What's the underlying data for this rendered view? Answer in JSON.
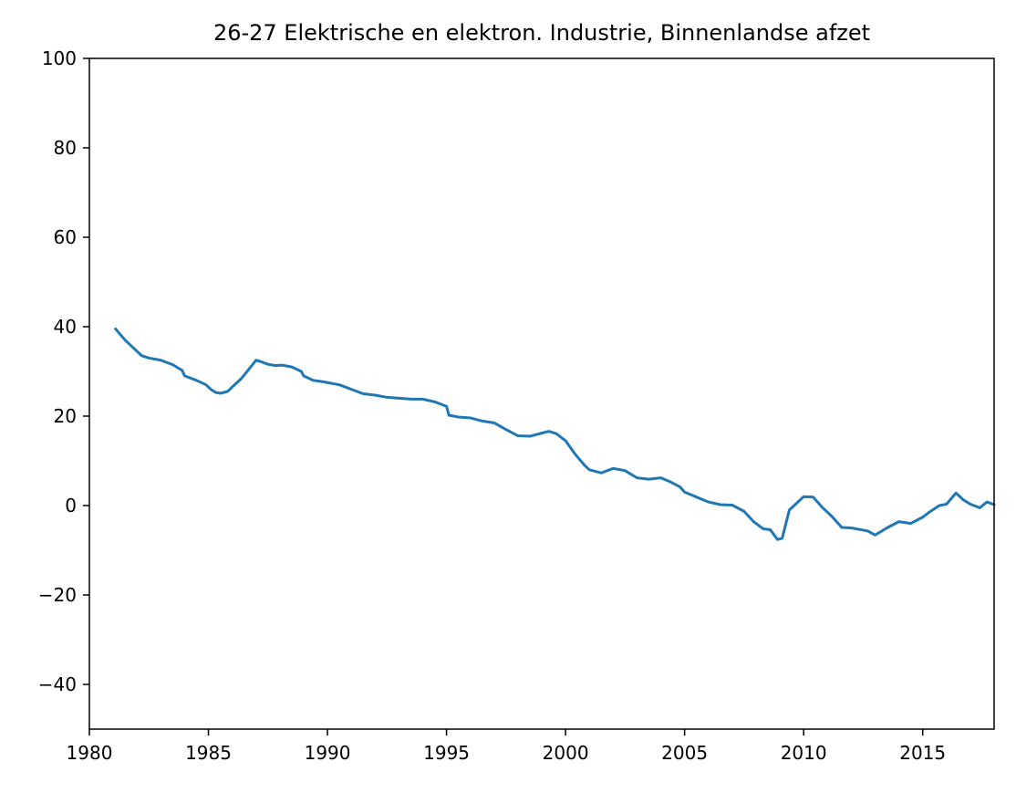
{
  "chart_data": {
    "type": "line",
    "title": "26-27 Elektrische en elektron. Industrie, Binnenlandse afzet",
    "xlabel": "",
    "ylabel": "",
    "xlim": [
      1980,
      2018
    ],
    "ylim": [
      -50,
      100
    ],
    "grid": false,
    "legend": "none",
    "x_ticks": [
      1980,
      1985,
      1990,
      1995,
      2000,
      2005,
      2010,
      2015
    ],
    "y_ticks": [
      100,
      80,
      60,
      40,
      20,
      0,
      -20,
      -40
    ],
    "x_tick_labels": [
      "1980",
      "1985",
      "1990",
      "1995",
      "2000",
      "2005",
      "2010",
      "2015"
    ],
    "y_tick_labels": [
      "100",
      "80",
      "60",
      "40",
      "20",
      "0",
      "−20",
      "−40"
    ],
    "series": [
      {
        "name": "Binnenlandse afzet",
        "color": "#1f77b4",
        "x": [
          1981.1,
          1981.5,
          1981.8,
          1982.2,
          1982.5,
          1983.0,
          1983.5,
          1983.9,
          1984.0,
          1984.5,
          1984.9,
          1985.1,
          1985.3,
          1985.5,
          1985.8,
          1986.1,
          1986.4,
          1986.7,
          1987.0,
          1987.2,
          1987.5,
          1987.8,
          1988.1,
          1988.5,
          1988.9,
          1989.0,
          1989.4,
          1989.8,
          1990.0,
          1990.5,
          1991.0,
          1991.5,
          1992.0,
          1992.5,
          1993.0,
          1993.5,
          1994.0,
          1994.5,
          1995.0,
          1995.1,
          1995.5,
          1996.0,
          1996.5,
          1997.0,
          1997.5,
          1998.0,
          1998.5,
          1999.0,
          1999.3,
          1999.6,
          2000.0,
          2000.4,
          2000.8,
          2001.0,
          2001.5,
          2002.0,
          2002.5,
          2003.0,
          2003.5,
          2004.0,
          2004.4,
          2004.8,
          2005.0,
          2005.5,
          2006.0,
          2006.5,
          2007.0,
          2007.5,
          2007.9,
          2008.3,
          2008.6,
          2008.9,
          2009.1,
          2009.4,
          2009.8,
          2010.0,
          2010.4,
          2010.8,
          2011.2,
          2011.6,
          2012.0,
          2012.4,
          2012.7,
          2013.0,
          2013.5,
          2014.0,
          2014.5,
          2015.0,
          2015.3,
          2015.7,
          2016.0,
          2016.4,
          2016.7,
          2017.0,
          2017.4,
          2017.7,
          2018.0
        ],
        "y": [
          39.5,
          37.0,
          35.5,
          33.5,
          33.0,
          32.5,
          31.5,
          30.2,
          29.0,
          28.0,
          27.0,
          26.0,
          25.3,
          25.1,
          25.5,
          27.0,
          28.5,
          30.5,
          32.5,
          32.2,
          31.6,
          31.3,
          31.4,
          31.0,
          30.0,
          29.0,
          28.0,
          27.7,
          27.5,
          27.0,
          26.0,
          25.0,
          24.7,
          24.2,
          24.0,
          23.8,
          23.8,
          23.2,
          22.2,
          20.2,
          19.8,
          19.6,
          18.9,
          18.5,
          17.0,
          15.6,
          15.5,
          16.2,
          16.6,
          16.1,
          14.5,
          11.5,
          9.0,
          8.0,
          7.3,
          8.3,
          7.8,
          6.2,
          5.9,
          6.2,
          5.3,
          4.2,
          3.0,
          1.9,
          0.8,
          0.2,
          0.1,
          -1.3,
          -3.6,
          -5.2,
          -5.4,
          -7.6,
          -7.3,
          -1.0,
          1.0,
          2.0,
          1.9,
          -0.5,
          -2.5,
          -4.9,
          -5.0,
          -5.4,
          -5.7,
          -6.6,
          -5.0,
          -3.6,
          -4.0,
          -2.6,
          -1.4,
          0.0,
          0.3,
          2.8,
          1.3,
          0.3,
          -0.5,
          0.8,
          0.2
        ]
      }
    ]
  }
}
